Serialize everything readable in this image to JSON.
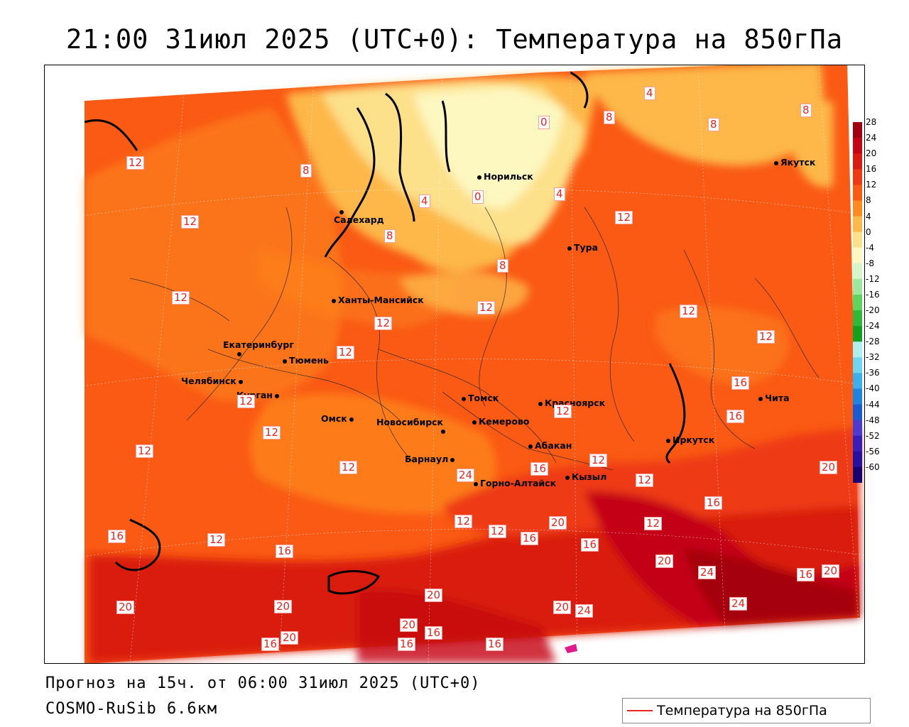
{
  "title": "21:00 31июл 2025 (UTC+0): Температура на 850гПа",
  "forecast_line": "Прогноз на 15ч. от 06:00 31июл 2025 (UTC+0)",
  "model_line": "COSMO-RuSib 6.6км",
  "legend_label": "Температура на 850гПа",
  "legend_color": "#e8251f",
  "colorbar": {
    "ticks": [
      "28",
      "24",
      "20",
      "16",
      "12",
      "8",
      "4",
      "0",
      "-4",
      "-8",
      "-12",
      "-16",
      "-20",
      "-24",
      "-28",
      "-32",
      "-36",
      "-40",
      "-44",
      "-48",
      "-52",
      "-56",
      "-60"
    ],
    "colors": [
      "#a00010",
      "#c40512",
      "#d91a10",
      "#ee3a12",
      "#fa5a14",
      "#fd8a1e",
      "#fdb84a",
      "#fde08a",
      "#fdf7c0",
      "#d6f5c8",
      "#9ee89e",
      "#5fd45f",
      "#2fb83a",
      "#12a020",
      "#aef0f0",
      "#70d6f0",
      "#3cb0ec",
      "#1e84e0",
      "#1a5ad2",
      "#4b3bd0",
      "#3a1eb8",
      "#2610a0",
      "#180070"
    ]
  },
  "cities": [
    {
      "name": "Норильск"
    },
    {
      "name": "Якутск"
    },
    {
      "name": "Салехард"
    },
    {
      "name": "Тура"
    },
    {
      "name": "Ханты-Мансийск"
    },
    {
      "name": "Екатеринбург"
    },
    {
      "name": "Тюмень"
    },
    {
      "name": "Челябинск"
    },
    {
      "name": "Курган"
    },
    {
      "name": "Омск"
    },
    {
      "name": "Новосибирск"
    },
    {
      "name": "Томск"
    },
    {
      "name": "Кемерово"
    },
    {
      "name": "Красноярск"
    },
    {
      "name": "Барнаул"
    },
    {
      "name": "Абакан"
    },
    {
      "name": "Горно-Алтайск"
    },
    {
      "name": "Кызыл"
    },
    {
      "name": "Иркутск"
    },
    {
      "name": "Чита"
    }
  ],
  "isotherm_labels": [
    "12",
    "12",
    "12",
    "8",
    "4",
    "0",
    "4",
    "0",
    "4",
    "8",
    "8",
    "8",
    "8",
    "8",
    "12",
    "12",
    "12",
    "12",
    "12",
    "12",
    "12",
    "12",
    "12",
    "12",
    "16",
    "16",
    "12",
    "12",
    "12",
    "16",
    "12",
    "16",
    "16",
    "12",
    "16",
    "16",
    "12",
    "20",
    "20",
    "12",
    "16",
    "20",
    "16",
    "24",
    "24",
    "20",
    "20",
    "20",
    "20",
    "24",
    "24",
    "20",
    "20",
    "16",
    "16",
    "16",
    "20",
    "16"
  ]
}
